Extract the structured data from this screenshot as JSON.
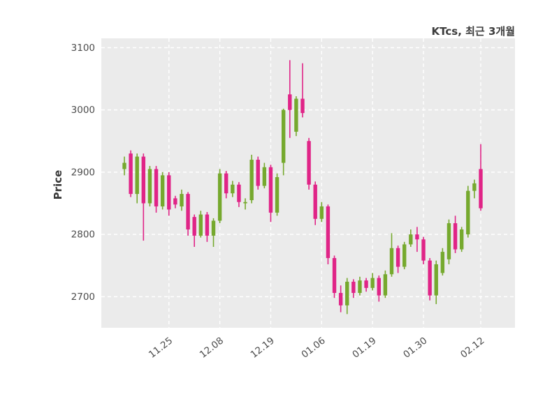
{
  "chart_data": {
    "type": "candlestick",
    "title": "KTcs, 최근 3개월",
    "ylabel": "Price",
    "xlabel": "",
    "ylim": [
      2650,
      3115
    ],
    "yticks": [
      2700,
      2800,
      2900,
      3000,
      3100
    ],
    "xticks": {
      "labels": [
        "11.25",
        "12.08",
        "12.19",
        "01.06",
        "01.19",
        "01.30",
        "02.12"
      ],
      "indices": [
        7,
        15,
        23,
        31,
        39,
        47,
        56
      ]
    },
    "colors": {
      "up": "#76a92e",
      "down": "#e02487",
      "plot_bg": "#ebebeb",
      "grid": "#ffffff",
      "tick_text": "#4d4d4d",
      "title_text": "#3c3c3c",
      "label_text": "#3a3a3a"
    },
    "grid": true,
    "legend": "none",
    "candles_format": [
      "open",
      "high",
      "low",
      "close"
    ],
    "candles": [
      [
        2905,
        2925,
        2895,
        2915
      ],
      [
        2930,
        2935,
        2860,
        2865
      ],
      [
        2865,
        2930,
        2850,
        2925
      ],
      [
        2925,
        2930,
        2790,
        2850
      ],
      [
        2850,
        2910,
        2845,
        2905
      ],
      [
        2905,
        2910,
        2835,
        2845
      ],
      [
        2845,
        2900,
        2840,
        2895
      ],
      [
        2895,
        2900,
        2830,
        2840
      ],
      [
        2858,
        2862,
        2842,
        2848
      ],
      [
        2845,
        2872,
        2838,
        2865
      ],
      [
        2865,
        2868,
        2798,
        2808
      ],
      [
        2828,
        2832,
        2780,
        2798
      ],
      [
        2798,
        2838,
        2795,
        2832
      ],
      [
        2832,
        2836,
        2788,
        2798
      ],
      [
        2798,
        2826,
        2780,
        2822
      ],
      [
        2822,
        2905,
        2818,
        2898
      ],
      [
        2898,
        2902,
        2858,
        2866
      ],
      [
        2866,
        2886,
        2860,
        2880
      ],
      [
        2880,
        2884,
        2844,
        2852
      ],
      [
        2850,
        2858,
        2840,
        2852
      ],
      [
        2855,
        2928,
        2850,
        2920
      ],
      [
        2920,
        2925,
        2872,
        2878
      ],
      [
        2878,
        2915,
        2874,
        2908
      ],
      [
        2908,
        2912,
        2820,
        2835
      ],
      [
        2835,
        2898,
        2830,
        2892
      ],
      [
        2915,
        3002,
        2895,
        3000
      ],
      [
        3025,
        3080,
        2955,
        3000
      ],
      [
        2965,
        3022,
        2958,
        3018
      ],
      [
        3018,
        3075,
        2988,
        2995
      ],
      [
        2950,
        2955,
        2872,
        2880
      ],
      [
        2880,
        2885,
        2815,
        2825
      ],
      [
        2825,
        2852,
        2820,
        2845
      ],
      [
        2845,
        2848,
        2752,
        2762
      ],
      [
        2762,
        2766,
        2698,
        2706
      ],
      [
        2706,
        2718,
        2675,
        2686
      ],
      [
        2686,
        2730,
        2672,
        2724
      ],
      [
        2724,
        2728,
        2698,
        2706
      ],
      [
        2706,
        2732,
        2702,
        2726
      ],
      [
        2726,
        2730,
        2708,
        2714
      ],
      [
        2714,
        2738,
        2710,
        2730
      ],
      [
        2730,
        2734,
        2692,
        2702
      ],
      [
        2702,
        2742,
        2698,
        2736
      ],
      [
        2736,
        2802,
        2732,
        2778
      ],
      [
        2778,
        2782,
        2738,
        2748
      ],
      [
        2748,
        2788,
        2744,
        2784
      ],
      [
        2784,
        2808,
        2780,
        2800
      ],
      [
        2800,
        2812,
        2772,
        2792
      ],
      [
        2792,
        2796,
        2752,
        2758
      ],
      [
        2758,
        2762,
        2694,
        2702
      ],
      [
        2702,
        2758,
        2688,
        2752
      ],
      [
        2738,
        2778,
        2734,
        2772
      ],
      [
        2760,
        2824,
        2752,
        2818
      ],
      [
        2818,
        2830,
        2770,
        2776
      ],
      [
        2776,
        2812,
        2772,
        2808
      ],
      [
        2800,
        2878,
        2795,
        2870
      ],
      [
        2870,
        2888,
        2858,
        2882
      ],
      [
        2905,
        2945,
        2838,
        2842
      ]
    ]
  }
}
